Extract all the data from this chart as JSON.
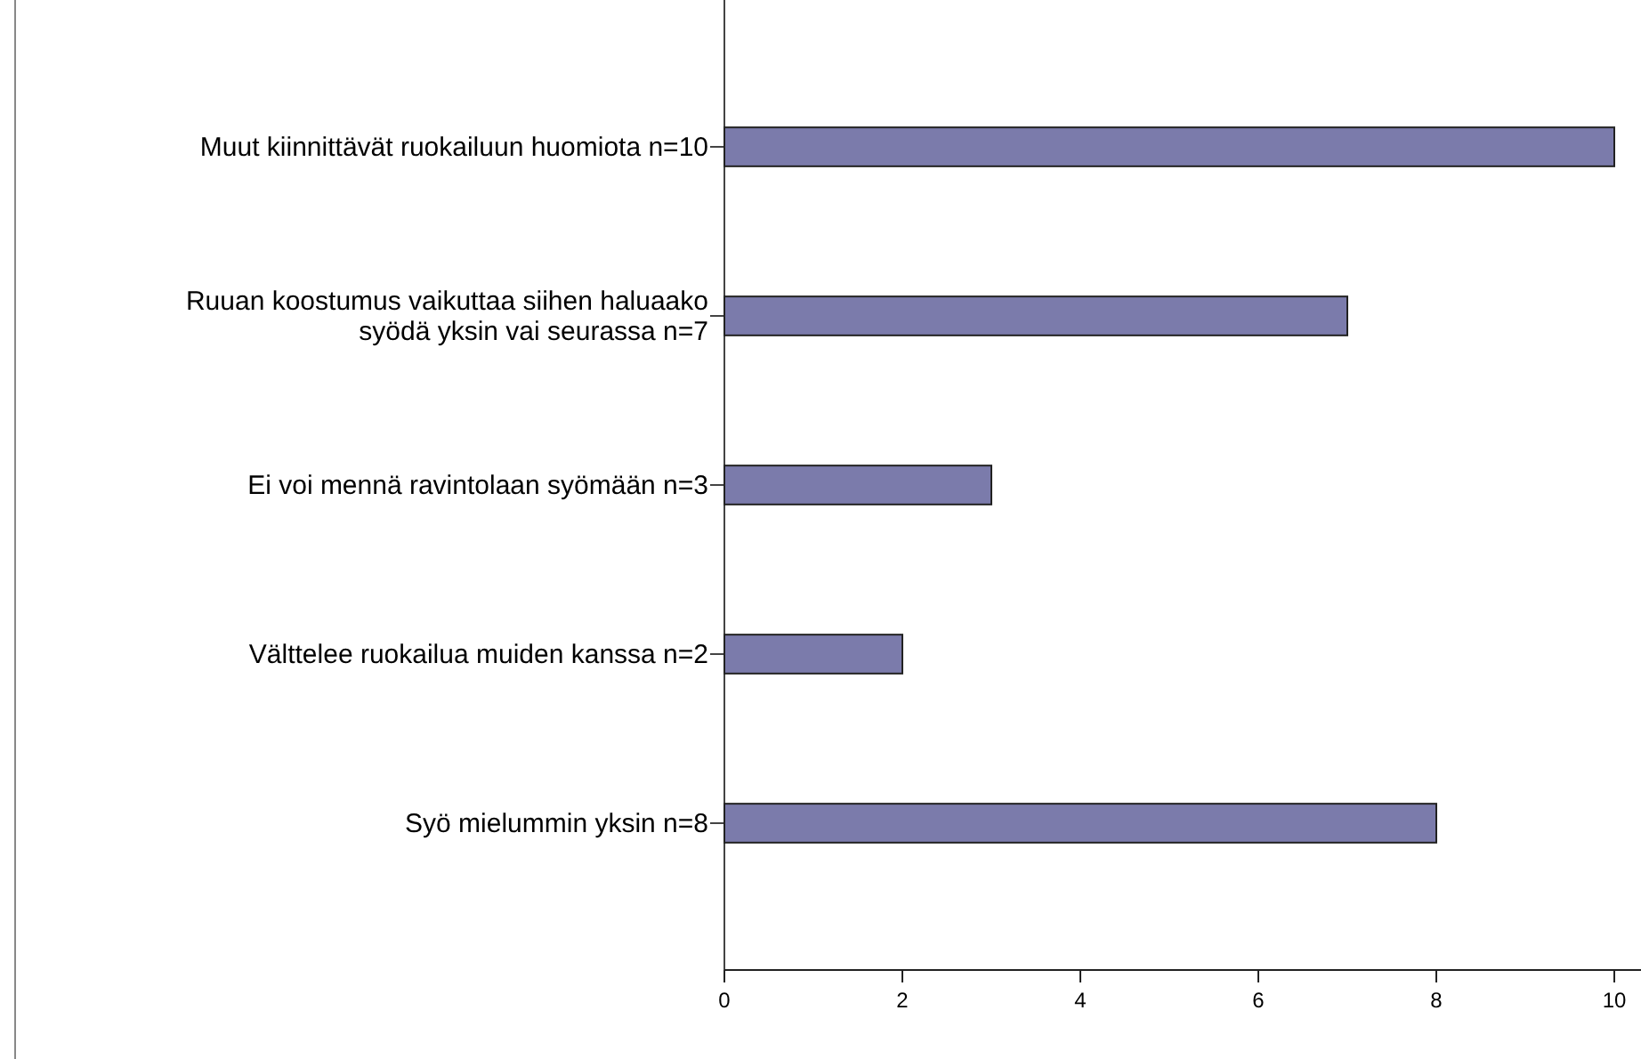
{
  "chart_data": {
    "type": "bar",
    "orientation": "horizontal",
    "categories": [
      "Muut kiinnittävät ruokailuun huomiota n=10",
      "Ruuan koostumus vaikuttaa siihen haluaako syödä yksin vai seurassa n=7",
      "Ei voi mennä ravintolaan syömään n=3",
      "Välttelee ruokailua muiden kanssa n=2",
      "Syö mielummin yksin n=8"
    ],
    "values": [
      10,
      7,
      3,
      2,
      8
    ],
    "color": "#7b7bab",
    "xlim": [
      0,
      10
    ],
    "xticks": [
      0,
      2,
      4,
      6,
      8,
      10
    ]
  }
}
